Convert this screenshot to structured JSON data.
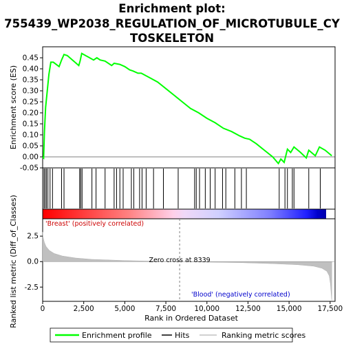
{
  "chart_data": {
    "type": "line",
    "title_lines": [
      "Enrichment plot:",
      "755439_WP2038_REGULATION_OF_MICROTUBULE_CY",
      "TOSKELETON"
    ],
    "es_panel": {
      "ylabel": "Enrichment score (ES)",
      "ylim": [
        -0.05,
        0.5
      ],
      "yticks": [
        -0.05,
        0.0,
        0.05,
        0.1,
        0.15,
        0.2,
        0.25,
        0.3,
        0.35,
        0.4,
        0.45
      ],
      "ytick_labels": [
        "-0.05",
        "0.00",
        "0.05",
        "0.10",
        "0.15",
        "0.20",
        "0.25",
        "0.30",
        "0.35",
        "0.40",
        "0.45"
      ],
      "series_name": "Enrichment profile",
      "color": "#00ff00",
      "points": [
        [
          0,
          0.0
        ],
        [
          60,
          -0.005
        ],
        [
          110,
          0.115
        ],
        [
          180,
          0.225
        ],
        [
          280,
          0.3
        ],
        [
          380,
          0.375
        ],
        [
          500,
          0.43
        ],
        [
          650,
          0.43
        ],
        [
          1000,
          0.41
        ],
        [
          1150,
          0.44
        ],
        [
          1300,
          0.465
        ],
        [
          1500,
          0.46
        ],
        [
          2200,
          0.415
        ],
        [
          2280,
          0.435
        ],
        [
          2380,
          0.47
        ],
        [
          2500,
          0.465
        ],
        [
          3100,
          0.44
        ],
        [
          3300,
          0.45
        ],
        [
          3500,
          0.44
        ],
        [
          3800,
          0.435
        ],
        [
          4200,
          0.415
        ],
        [
          4350,
          0.425
        ],
        [
          4700,
          0.42
        ],
        [
          5000,
          0.41
        ],
        [
          5300,
          0.395
        ],
        [
          5500,
          0.39
        ],
        [
          5800,
          0.38
        ],
        [
          6000,
          0.38
        ],
        [
          6500,
          0.36
        ],
        [
          7000,
          0.34
        ],
        [
          7500,
          0.31
        ],
        [
          8000,
          0.28
        ],
        [
          8500,
          0.25
        ],
        [
          9000,
          0.22
        ],
        [
          9500,
          0.2
        ],
        [
          10000,
          0.175
        ],
        [
          10500,
          0.155
        ],
        [
          11000,
          0.13
        ],
        [
          11500,
          0.115
        ],
        [
          12000,
          0.095
        ],
        [
          12300,
          0.085
        ],
        [
          12600,
          0.08
        ],
        [
          13000,
          0.06
        ],
        [
          13500,
          0.03
        ],
        [
          14000,
          0.0
        ],
        [
          14350,
          -0.03
        ],
        [
          14500,
          -0.01
        ],
        [
          14700,
          -0.025
        ],
        [
          14900,
          0.035
        ],
        [
          15100,
          0.02
        ],
        [
          15300,
          0.045
        ],
        [
          15700,
          0.02
        ],
        [
          16050,
          -0.005
        ],
        [
          16200,
          0.03
        ],
        [
          16600,
          0.005
        ],
        [
          16850,
          0.045
        ],
        [
          17200,
          0.03
        ],
        [
          17600,
          0.005
        ]
      ]
    },
    "hits": [
      80,
      150,
      230,
      320,
      450,
      600,
      1150,
      1300,
      2250,
      2320,
      2400,
      3000,
      3250,
      3800,
      4350,
      4500,
      4700,
      4900,
      5400,
      5550,
      5900,
      6050,
      6300,
      6750,
      7350,
      8250,
      9250,
      9350,
      9550,
      9900,
      10200,
      10500,
      10950,
      11150,
      11700,
      12100,
      12400,
      14400,
      14750,
      14900,
      15200,
      15300,
      16200,
      16900
    ],
    "ranking_panel": {
      "ylabel": "Ranked list metric (Diff_of_Classes)",
      "xlabel": "Rank in Ordered Dataset",
      "ylim": [
        -3.9,
        4.2
      ],
      "yticks": [
        -2.5,
        0.0,
        2.5
      ],
      "ytick_labels": [
        "-2.5",
        "0.0",
        "2.5"
      ],
      "xlim": [
        0,
        17800
      ],
      "xticks": [
        0,
        2500,
        5000,
        7500,
        10000,
        12500,
        15000,
        17500
      ],
      "xtick_labels": [
        "0",
        "2,500",
        "5,000",
        "7,500",
        "10,000",
        "12,500",
        "15,000",
        "17,500"
      ],
      "zero_cross_label": "Zero cross at 8339",
      "zero_cross_x": 8339,
      "pos_label": "'Breast' (positively correlated)",
      "neg_label": "'Blood' (negatively correlated)",
      "metric_points": [
        [
          0,
          2.9
        ],
        [
          30,
          2.4
        ],
        [
          100,
          1.9
        ],
        [
          200,
          1.5
        ],
        [
          400,
          1.1
        ],
        [
          700,
          0.8
        ],
        [
          1200,
          0.55
        ],
        [
          2000,
          0.35
        ],
        [
          3000,
          0.22
        ],
        [
          5000,
          0.1
        ],
        [
          7000,
          0.03
        ],
        [
          8339,
          0.0
        ],
        [
          10000,
          -0.05
        ],
        [
          12000,
          -0.1
        ],
        [
          14000,
          -0.2
        ],
        [
          15500,
          -0.3
        ],
        [
          16500,
          -0.45
        ],
        [
          17000,
          -0.65
        ],
        [
          17300,
          -0.95
        ],
        [
          17450,
          -1.4
        ],
        [
          17520,
          -2.2
        ],
        [
          17560,
          -3.1
        ],
        [
          17600,
          -3.8
        ]
      ]
    },
    "legend": [
      {
        "name": "Enrichment profile",
        "color": "#00ff00"
      },
      {
        "name": "Hits",
        "color": "#000000"
      },
      {
        "name": "Ranking metric scores",
        "color": "#c0c0c0"
      }
    ],
    "colors": {
      "es_line": "#00ff00",
      "hits": "#000000",
      "metric_fill": "#c0c0c0",
      "pos_label": "#cc0000",
      "neg_label": "#0000cc",
      "zero_line": "#808080"
    }
  }
}
